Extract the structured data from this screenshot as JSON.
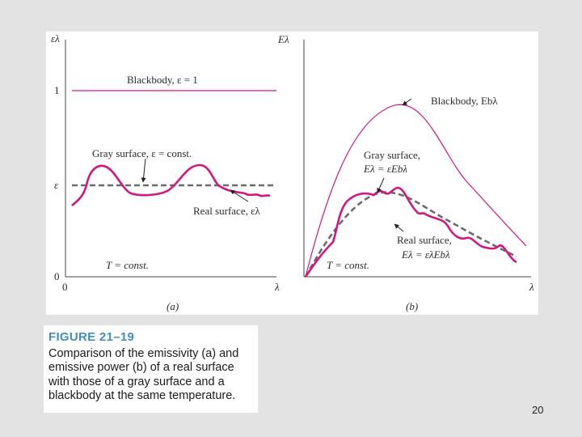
{
  "panel_a": {
    "y_axis_symbol": "ελ",
    "x_axis_symbol": "λ",
    "origin": "0",
    "ticks": {
      "one": "1",
      "epsilon": "ε",
      "zero": "0"
    },
    "label_blackbody": "Blackbody, ε = 1",
    "label_gray": "Gray surface, ε = const.",
    "label_real": "Real surface, ελ",
    "label_temperature": "T = const.",
    "sublabel": "(a)"
  },
  "panel_b": {
    "y_axis_symbol": "Eλ",
    "x_axis_symbol": "λ",
    "label_blackbody": "Blackbody, Ebλ",
    "label_gray_line1": "Gray surface,",
    "label_gray_line2": "Eλ = εEbλ",
    "label_real_line1": "Real surface,",
    "label_real_line2": "Eλ = ελEbλ",
    "label_temperature": "T = const.",
    "sublabel": "(b)"
  },
  "caption": {
    "title": "FIGURE 21–19",
    "text": "Comparison of the emissivity (a) and emissive power (b) of a real surface with those of a gray surface and a blackbody at the same temperature."
  },
  "page_number": "20",
  "colors": {
    "magenta": "#d2177e",
    "gray_dashed": "#6b6b6b",
    "caption_title": "#3f8fc2"
  }
}
